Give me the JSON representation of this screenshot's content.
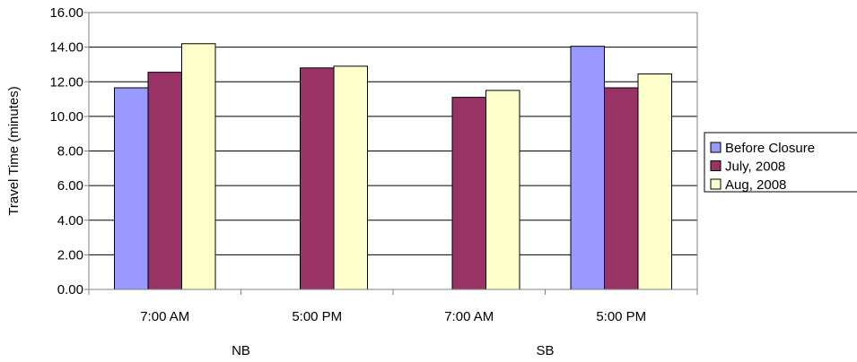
{
  "chart_data": {
    "type": "bar",
    "title": "",
    "xlabel": "",
    "ylabel": "Travel Time (minutes)",
    "ylim": [
      0,
      16
    ],
    "yticks": [
      "0.00",
      "2.00",
      "4.00",
      "6.00",
      "8.00",
      "10.00",
      "12.00",
      "14.00",
      "16.00"
    ],
    "grid": true,
    "legend_position": "right",
    "categories": [
      "7:00 AM",
      "5:00 PM",
      "7:00 AM",
      "5:00 PM"
    ],
    "groups": [
      {
        "label": "NB",
        "span": 2
      },
      {
        "label": "SB",
        "span": 2
      }
    ],
    "series": [
      {
        "name": "Before Closure",
        "color": "#9999FF",
        "values": [
          11.65,
          null,
          null,
          14.05
        ]
      },
      {
        "name": "July, 2008",
        "color": "#993366",
        "values": [
          12.55,
          12.8,
          11.1,
          11.65
        ]
      },
      {
        "name": "Aug, 2008",
        "color": "#FFFFCC",
        "values": [
          14.2,
          12.9,
          11.5,
          12.45
        ]
      }
    ]
  }
}
